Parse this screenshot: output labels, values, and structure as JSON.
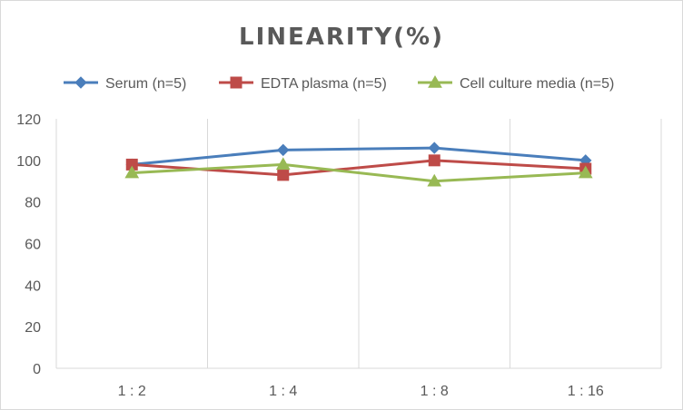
{
  "chart_data": {
    "type": "line",
    "title": "LINEARITY(%)",
    "xlabel": "",
    "ylabel": "",
    "categories": [
      "1:2",
      "1:4",
      "1:8",
      "1:16"
    ],
    "ylim": [
      0,
      120
    ],
    "yticks": [
      0,
      20,
      40,
      60,
      80,
      100,
      120
    ],
    "grid": "vertical",
    "legend_position": "top",
    "series": [
      {
        "name": "Serum (n=5)",
        "values": [
          98,
          105,
          106,
          100
        ],
        "color": "#4a7ebb",
        "marker": "diamond"
      },
      {
        "name": "EDTA plasma (n=5)",
        "values": [
          98,
          93,
          100,
          96
        ],
        "color": "#be4b48",
        "marker": "square"
      },
      {
        "name": "Cell culture media (n=5)",
        "values": [
          94,
          98,
          90,
          94
        ],
        "color": "#98b954",
        "marker": "triangle"
      }
    ]
  }
}
